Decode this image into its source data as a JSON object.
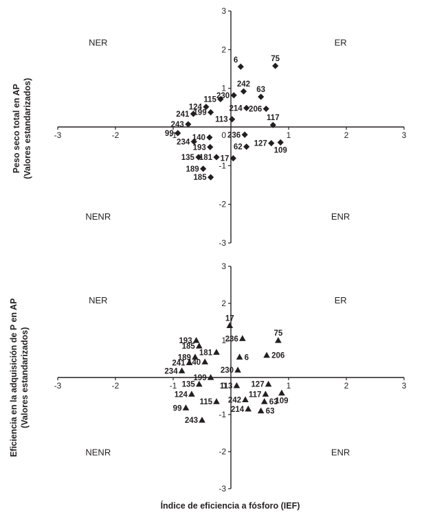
{
  "figure": {
    "xlabel": "Índice de eficiencia a fósforo (IEF)",
    "marker_color": "#231f20",
    "axis_color": "#231f20"
  },
  "chart_data": [
    {
      "type": "scatter",
      "marker": "diamond",
      "ylabel": "Peso seco total en AP (Valores estandarizados)",
      "ylabel_line1": "Peso seco total en AP",
      "ylabel_line2": "(Valores estandarizados)",
      "xlim": [
        -3,
        3
      ],
      "ylim": [
        -3,
        3
      ],
      "ticks": [
        -3,
        -2,
        -1,
        1,
        2,
        3
      ],
      "zero_label": "0",
      "grid": false,
      "quadrants": [
        {
          "label": "NER",
          "x": -2.3,
          "y": 2.1
        },
        {
          "label": "ER",
          "x": 1.9,
          "y": 2.1
        },
        {
          "label": "NENR",
          "x": -2.3,
          "y": -2.4
        },
        {
          "label": "ENR",
          "x": 1.9,
          "y": -2.4
        }
      ],
      "points": [
        {
          "label": "6",
          "x": 0.17,
          "y": 1.56,
          "pos": "AL"
        },
        {
          "label": "75",
          "x": 0.77,
          "y": 1.58,
          "pos": "A"
        },
        {
          "label": "230",
          "x": 0.05,
          "y": 0.82,
          "pos": "L"
        },
        {
          "label": "242",
          "x": 0.22,
          "y": 0.92,
          "pos": "A"
        },
        {
          "label": "63",
          "x": 0.52,
          "y": 0.78,
          "pos": "A"
        },
        {
          "label": "115",
          "x": -0.18,
          "y": 0.72,
          "pos": "L"
        },
        {
          "label": "124",
          "x": -0.43,
          "y": 0.52,
          "pos": "L"
        },
        {
          "label": "199",
          "x": -0.35,
          "y": 0.38,
          "pos": "L"
        },
        {
          "label": "241",
          "x": -0.65,
          "y": 0.34,
          "pos": "L"
        },
        {
          "label": "214",
          "x": 0.27,
          "y": 0.49,
          "pos": "L"
        },
        {
          "label": "206",
          "x": 0.61,
          "y": 0.47,
          "pos": "L"
        },
        {
          "label": "243",
          "x": -0.74,
          "y": 0.07,
          "pos": "L"
        },
        {
          "label": "113",
          "x": 0.02,
          "y": 0.2,
          "pos": "L"
        },
        {
          "label": "117",
          "x": 0.73,
          "y": 0.05,
          "pos": "A"
        },
        {
          "label": "99",
          "x": -0.92,
          "y": -0.16,
          "pos": "L"
        },
        {
          "label": "234",
          "x": -0.64,
          "y": -0.38,
          "pos": "L"
        },
        {
          "label": "140",
          "x": -0.37,
          "y": -0.27,
          "pos": "L"
        },
        {
          "label": "236",
          "x": 0.24,
          "y": -0.2,
          "pos": "L"
        },
        {
          "label": "193",
          "x": -0.36,
          "y": -0.52,
          "pos": "L"
        },
        {
          "label": "62",
          "x": 0.27,
          "y": -0.51,
          "pos": "L"
        },
        {
          "label": "127",
          "x": 0.7,
          "y": -0.42,
          "pos": "L"
        },
        {
          "label": "109",
          "x": 0.86,
          "y": -0.4,
          "pos": "B"
        },
        {
          "label": "135",
          "x": -0.56,
          "y": -0.78,
          "pos": "L"
        },
        {
          "label": "181",
          "x": -0.25,
          "y": -0.78,
          "pos": "L"
        },
        {
          "label": "17",
          "x": 0.04,
          "y": -0.81,
          "pos": "L"
        },
        {
          "label": "189",
          "x": -0.48,
          "y": -1.08,
          "pos": "L"
        },
        {
          "label": "185",
          "x": -0.35,
          "y": -1.3,
          "pos": "L"
        }
      ]
    },
    {
      "type": "scatter",
      "marker": "triangle",
      "ylabel": "Eficiencia en la adquisición de P en AP (Valores estandarizados)",
      "ylabel_line1": "Eficiencia en la adquisición de P en AP",
      "ylabel_line2": "(Valores estandarizados)",
      "xlim": [
        -3,
        3
      ],
      "ylim": [
        -3,
        3
      ],
      "ticks": [
        -3,
        -2,
        -1,
        1,
        2,
        3
      ],
      "zero_label": "0",
      "grid": false,
      "quadrants": [
        {
          "label": "NER",
          "x": -2.3,
          "y": 2.0
        },
        {
          "label": "ER",
          "x": 1.9,
          "y": 2.0
        },
        {
          "label": "NENR",
          "x": -2.3,
          "y": -2.1
        },
        {
          "label": "ENR",
          "x": 1.9,
          "y": -2.1
        }
      ],
      "points": [
        {
          "label": "17",
          "x": -0.02,
          "y": 1.4,
          "pos": "A"
        },
        {
          "label": "236",
          "x": 0.2,
          "y": 1.05,
          "pos": "L"
        },
        {
          "label": "193",
          "x": -0.6,
          "y": 1.0,
          "pos": "L"
        },
        {
          "label": "185",
          "x": -0.55,
          "y": 0.85,
          "pos": "L"
        },
        {
          "label": "75",
          "x": 0.82,
          "y": 1.0,
          "pos": "A"
        },
        {
          "label": "181",
          "x": -0.25,
          "y": 0.68,
          "pos": "L"
        },
        {
          "label": "189",
          "x": -0.62,
          "y": 0.55,
          "pos": "L"
        },
        {
          "label": "6",
          "x": 0.15,
          "y": 0.55,
          "pos": "R"
        },
        {
          "label": "206",
          "x": 0.62,
          "y": 0.6,
          "pos": "R"
        },
        {
          "label": "241",
          "x": -0.72,
          "y": 0.4,
          "pos": "L"
        },
        {
          "label": "140",
          "x": -0.45,
          "y": 0.42,
          "pos": "L"
        },
        {
          "label": "234",
          "x": -0.85,
          "y": 0.18,
          "pos": "L"
        },
        {
          "label": "230",
          "x": 0.12,
          "y": 0.2,
          "pos": "L"
        },
        {
          "label": "199",
          "x": -0.35,
          "y": 0.0,
          "pos": "L"
        },
        {
          "label": "135",
          "x": -0.55,
          "y": -0.18,
          "pos": "L"
        },
        {
          "label": "113",
          "x": 0.1,
          "y": -0.22,
          "pos": "L"
        },
        {
          "label": "127",
          "x": 0.65,
          "y": -0.18,
          "pos": "L"
        },
        {
          "label": "124",
          "x": -0.68,
          "y": -0.45,
          "pos": "L"
        },
        {
          "label": "117",
          "x": 0.6,
          "y": -0.45,
          "pos": "L"
        },
        {
          "label": "109",
          "x": 0.88,
          "y": -0.42,
          "pos": "B"
        },
        {
          "label": "115",
          "x": -0.25,
          "y": -0.65,
          "pos": "L"
        },
        {
          "label": "242",
          "x": 0.25,
          "y": -0.6,
          "pos": "L"
        },
        {
          "label": "63",
          "x": 0.58,
          "y": -0.65,
          "pos": "R"
        },
        {
          "label": "99",
          "x": -0.78,
          "y": -0.82,
          "pos": "L"
        },
        {
          "label": "214",
          "x": 0.3,
          "y": -0.85,
          "pos": "L"
        },
        {
          "label": "63",
          "x": 0.52,
          "y": -0.9,
          "pos": "R"
        },
        {
          "label": "243",
          "x": -0.5,
          "y": -1.15,
          "pos": "L"
        }
      ]
    }
  ]
}
